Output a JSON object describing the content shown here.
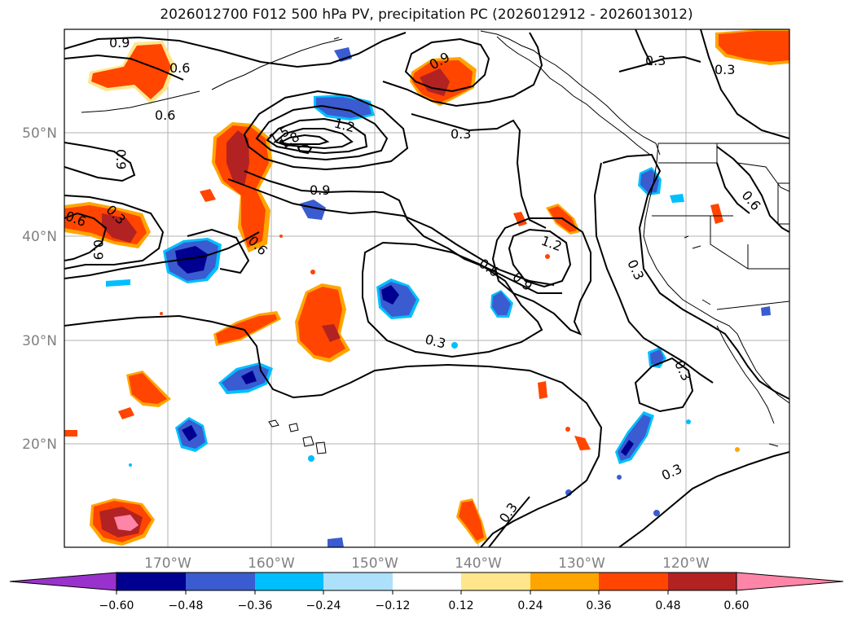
{
  "title": "2026012700 F012 500 hPa PV, precipitation PC (2026012912 - 2026013012)",
  "map": {
    "lat_labels": [
      "50°N",
      "40°N",
      "30°N",
      "20°N"
    ],
    "lon_labels": [
      "170°W",
      "160°W",
      "150°W",
      "140°W",
      "130°W",
      "120°W"
    ],
    "contour_labels": [
      "0.9",
      "0.6",
      "0.6",
      "0.9",
      "0.3",
      "0.3",
      "1.5",
      "1.8",
      "1.2",
      "0.3",
      "0.9",
      "0.9",
      "0.6",
      "0.6",
      "0.3",
      "0.9",
      "0.6",
      "0.6",
      "1.2",
      "0.6",
      "0.9",
      "0.3",
      "0.3",
      "0.3",
      "0.3",
      "0.3"
    ],
    "colors": {
      "purple": "#9932CC",
      "navy": "#000090",
      "royalblue": "#3A5CD0",
      "deepskyblue": "#00BFFF",
      "lightblue": "#ADE0FA",
      "white": "#FFFFFF",
      "lightyellow": "#FFE68C",
      "orange": "#FFA500",
      "orangered": "#FF4500",
      "firebrick": "#B22222",
      "pink": "#FF85A8"
    }
  },
  "colorbar": {
    "tick_labels": [
      "−0.60",
      "−0.48",
      "−0.36",
      "−0.24",
      "−0.12",
      "0.12",
      "0.24",
      "0.36",
      "0.48",
      "0.60"
    ]
  }
}
